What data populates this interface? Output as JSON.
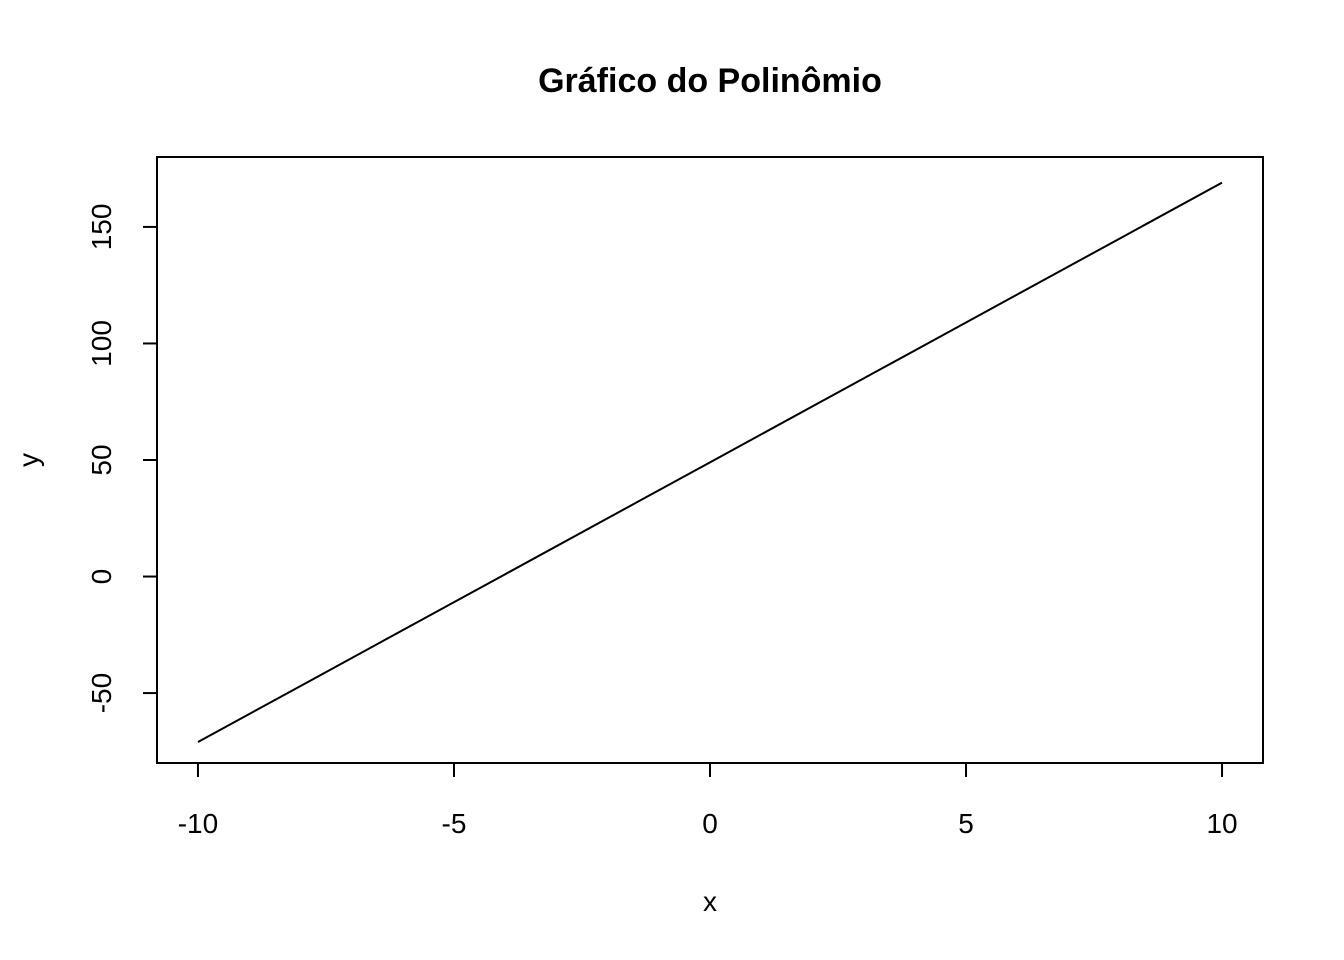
{
  "chart_data": {
    "type": "line",
    "title": "Gráfico do Polinômio",
    "xlabel": "x",
    "ylabel": "y",
    "xlim": [
      -10.8,
      10.8
    ],
    "ylim": [
      -80,
      180
    ],
    "x_ticks": [
      -10,
      -5,
      0,
      5,
      10
    ],
    "x_tick_labels": [
      "-10",
      "-5",
      "0",
      "5",
      "10"
    ],
    "y_ticks": [
      -50,
      0,
      50,
      100,
      150
    ],
    "y_tick_labels": [
      "-50",
      "0",
      "50",
      "100",
      "150"
    ],
    "grid": false,
    "series": [
      {
        "name": "y",
        "color": "#000000",
        "x": [
          -10,
          -8,
          -6,
          -4,
          -2,
          0,
          2,
          4,
          6,
          8,
          10
        ],
        "values": [
          -71,
          -47,
          -23,
          1,
          25,
          49,
          73,
          97,
          121,
          145,
          169
        ]
      }
    ]
  }
}
